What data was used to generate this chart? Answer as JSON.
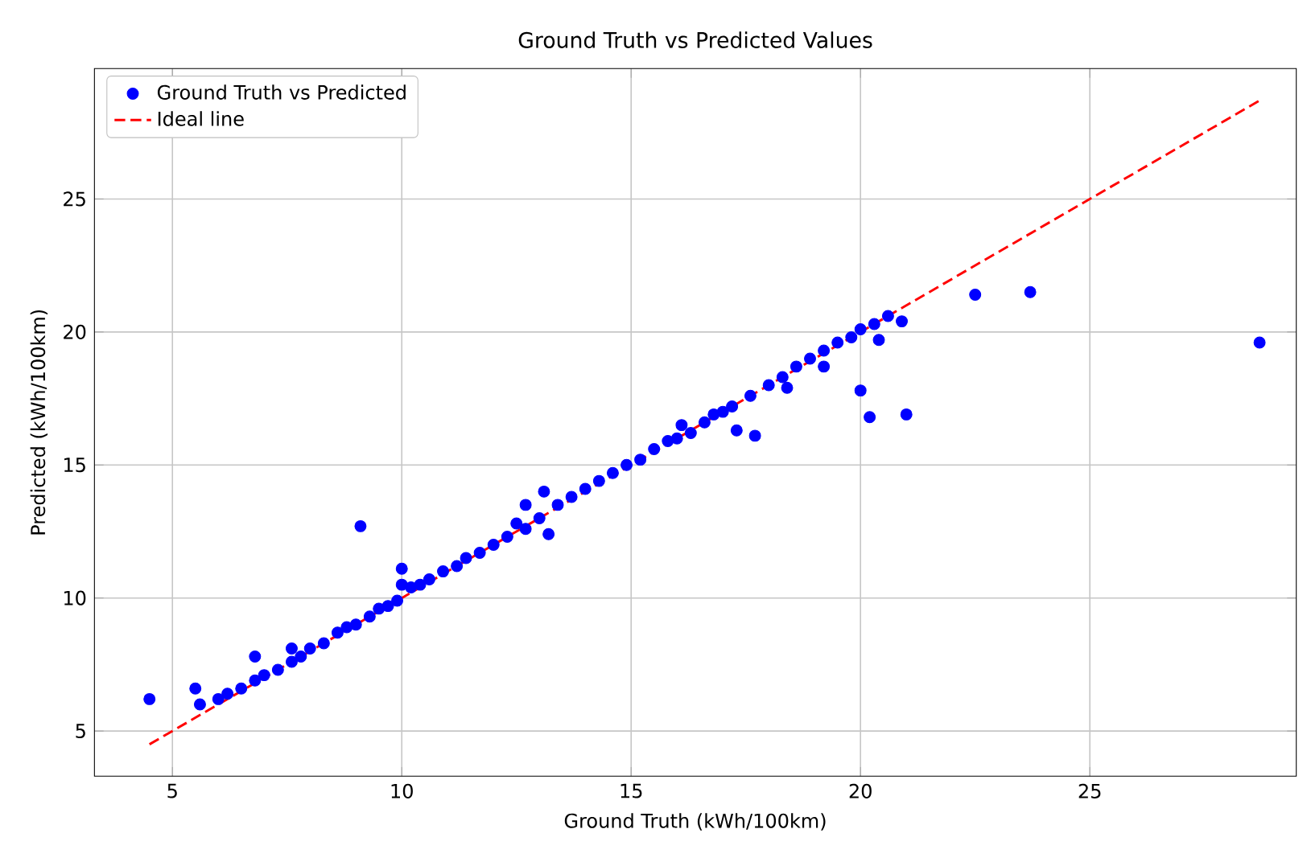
{
  "chart_data": {
    "type": "scatter",
    "title": "Ground Truth vs Predicted Values",
    "xlabel": "Ground Truth (kWh/100km)",
    "ylabel": "Predicted (kWh/100km)",
    "xlim": [
      3.3,
      29.5
    ],
    "ylim": [
      3.3,
      29.9
    ],
    "xticks": [
      5,
      10,
      15,
      20,
      25
    ],
    "yticks": [
      5,
      10,
      15,
      20,
      25
    ],
    "grid": true,
    "legend": "top left",
    "series": [
      {
        "name": "Ground Truth vs Predicted",
        "color": "#0000ff",
        "marker": "circle",
        "x": [
          4.5,
          5.5,
          5.6,
          6.0,
          6.2,
          6.5,
          6.8,
          6.8,
          7.0,
          7.3,
          7.6,
          7.6,
          7.8,
          8.0,
          8.3,
          8.6,
          8.8,
          9.0,
          9.1,
          9.3,
          9.5,
          9.7,
          9.9,
          10.0,
          10.0,
          10.2,
          10.4,
          10.6,
          10.9,
          11.2,
          11.4,
          11.7,
          12.0,
          12.3,
          12.5,
          12.7,
          12.7,
          13.0,
          13.1,
          13.2,
          13.4,
          13.7,
          14.0,
          14.3,
          14.6,
          14.9,
          15.2,
          15.5,
          15.8,
          16.0,
          16.1,
          16.3,
          16.6,
          16.8,
          17.0,
          17.2,
          17.3,
          17.6,
          17.7,
          18.0,
          18.3,
          18.4,
          18.6,
          18.9,
          19.2,
          19.2,
          19.5,
          19.8,
          20.0,
          20.0,
          20.2,
          20.3,
          20.4,
          20.6,
          20.9,
          21.0,
          22.5,
          23.7,
          28.7
        ],
        "values": [
          6.2,
          6.6,
          6.0,
          6.2,
          6.4,
          6.6,
          7.8,
          6.9,
          7.1,
          7.3,
          8.1,
          7.6,
          7.8,
          8.1,
          8.3,
          8.7,
          8.9,
          9.0,
          12.7,
          9.3,
          9.6,
          9.7,
          9.9,
          11.1,
          10.5,
          10.4,
          10.5,
          10.7,
          11.0,
          11.2,
          11.5,
          11.7,
          12.0,
          12.3,
          12.8,
          13.5,
          12.6,
          13.0,
          14.0,
          12.4,
          13.5,
          13.8,
          14.1,
          14.4,
          14.7,
          15.0,
          15.2,
          15.6,
          15.9,
          16.0,
          16.5,
          16.2,
          16.6,
          16.9,
          17.0,
          17.2,
          16.3,
          17.6,
          16.1,
          18.0,
          18.3,
          17.9,
          18.7,
          19.0,
          18.7,
          19.3,
          19.6,
          19.8,
          20.1,
          17.8,
          16.8,
          20.3,
          19.7,
          20.6,
          20.4,
          16.9,
          21.4,
          21.5,
          19.6
        ]
      },
      {
        "name": "Ideal line",
        "color": "#ff0000",
        "type": "line",
        "line_style": "dashed",
        "marker": "none",
        "x": [
          4.5,
          28.7
        ],
        "values": [
          4.5,
          28.7
        ]
      }
    ]
  }
}
